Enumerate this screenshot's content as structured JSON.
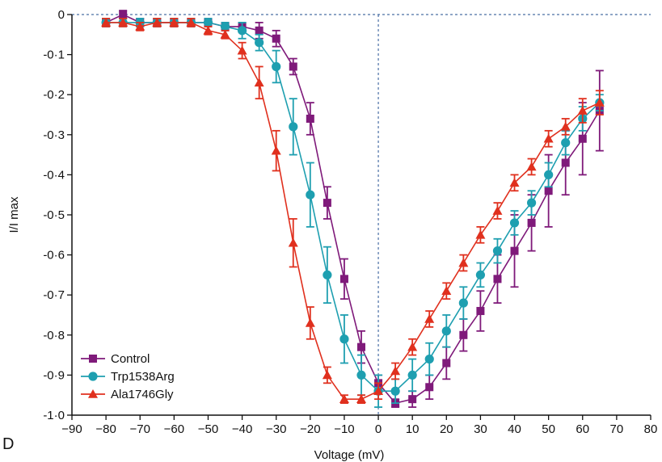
{
  "panel_label": "D",
  "chart_data": {
    "type": "line",
    "title": "",
    "xlabel": "Voltage (mV)",
    "ylabel": "I/I max",
    "xlim": [
      -90,
      80
    ],
    "ylim": [
      -1.0,
      0
    ],
    "x_ticks": [
      -90,
      -80,
      -70,
      -60,
      -50,
      -40,
      -30,
      -20,
      -10,
      0,
      10,
      20,
      30,
      40,
      50,
      60,
      70,
      80
    ],
    "x_tick_labels": [
      "−90",
      "−80",
      "−70",
      "−60",
      "−50",
      "−40",
      "−30",
      "−20",
      "−10",
      "0",
      "10",
      "20",
      "30",
      "40",
      "50",
      "60",
      "70",
      "80"
    ],
    "y_ticks": [
      0,
      -0.1,
      -0.2,
      -0.3,
      -0.4,
      -0.5,
      -0.6,
      -0.7,
      -0.8,
      -0.9,
      -1.0
    ],
    "y_tick_labels": [
      "0",
      "-0·1",
      "-0·2",
      "-0·3",
      "-0·4",
      "-0·5",
      "-0·6",
      "-0·7",
      "-0·8",
      "-0·9",
      "-1·0"
    ],
    "reference_lines": {
      "y": 0,
      "x": 0,
      "style": "dashed",
      "color": "#4a6fa5"
    },
    "grid": false,
    "legend_position": "bottom-left",
    "series": [
      {
        "name": "Control",
        "color": "#7f1a7a",
        "marker": "square",
        "x": [
          -80,
          -75,
          -70,
          -65,
          -60,
          -55,
          -50,
          -45,
          -40,
          -35,
          -30,
          -25,
          -20,
          -15,
          -10,
          -5,
          0,
          5,
          10,
          15,
          20,
          25,
          30,
          35,
          40,
          45,
          50,
          55,
          60,
          65
        ],
        "y": [
          -0.02,
          0.0,
          -0.02,
          -0.02,
          -0.02,
          -0.02,
          -0.02,
          -0.03,
          -0.03,
          -0.04,
          -0.06,
          -0.13,
          -0.26,
          -0.47,
          -0.66,
          -0.83,
          -0.92,
          -0.97,
          -0.96,
          -0.93,
          -0.87,
          -0.8,
          -0.74,
          -0.66,
          -0.59,
          -0.52,
          -0.44,
          -0.37,
          -0.31,
          -0.24
        ],
        "err": [
          0.01,
          0.01,
          0.01,
          0.01,
          0.01,
          0.01,
          0.01,
          0.01,
          0.01,
          0.02,
          0.02,
          0.02,
          0.04,
          0.04,
          0.05,
          0.04,
          0.02,
          0.01,
          0.02,
          0.03,
          0.04,
          0.04,
          0.05,
          0.06,
          0.09,
          0.07,
          0.09,
          0.08,
          0.09,
          0.1
        ]
      },
      {
        "name": "Trp1538Arg",
        "color": "#1e9fb0",
        "marker": "circle",
        "x": [
          -80,
          -75,
          -70,
          -65,
          -60,
          -55,
          -50,
          -45,
          -40,
          -35,
          -30,
          -25,
          -20,
          -15,
          -10,
          -5,
          0,
          5,
          10,
          15,
          20,
          25,
          30,
          35,
          40,
          45,
          50,
          55,
          60,
          65
        ],
        "y": [
          -0.02,
          -0.02,
          -0.02,
          -0.02,
          -0.02,
          -0.02,
          -0.02,
          -0.03,
          -0.04,
          -0.07,
          -0.13,
          -0.28,
          -0.45,
          -0.65,
          -0.81,
          -0.9,
          -0.94,
          -0.94,
          -0.9,
          -0.86,
          -0.79,
          -0.72,
          -0.65,
          -0.59,
          -0.52,
          -0.47,
          -0.4,
          -0.32,
          -0.26,
          -0.22
        ],
        "err": [
          0.01,
          0.01,
          0.01,
          0.01,
          0.01,
          0.01,
          0.01,
          0.01,
          0.02,
          0.02,
          0.04,
          0.07,
          0.08,
          0.07,
          0.06,
          0.05,
          0.04,
          0.03,
          0.04,
          0.04,
          0.04,
          0.04,
          0.03,
          0.03,
          0.03,
          0.03,
          0.03,
          0.03,
          0.03,
          0.02
        ]
      },
      {
        "name": "Ala1746Gly",
        "color": "#e0301e",
        "marker": "triangle",
        "x": [
          -80,
          -75,
          -70,
          -65,
          -60,
          -55,
          -50,
          -45,
          -40,
          -35,
          -30,
          -25,
          -20,
          -15,
          -10,
          -5,
          0,
          5,
          10,
          15,
          20,
          25,
          30,
          35,
          40,
          45,
          50,
          55,
          60,
          65
        ],
        "y": [
          -0.02,
          -0.02,
          -0.03,
          -0.02,
          -0.02,
          -0.02,
          -0.04,
          -0.05,
          -0.09,
          -0.17,
          -0.34,
          -0.57,
          -0.77,
          -0.9,
          -0.96,
          -0.96,
          -0.94,
          -0.89,
          -0.83,
          -0.76,
          -0.69,
          -0.62,
          -0.55,
          -0.49,
          -0.42,
          -0.38,
          -0.31,
          -0.28,
          -0.24,
          -0.22
        ],
        "err": [
          0.01,
          0.01,
          0.01,
          0.01,
          0.01,
          0.01,
          0.01,
          0.01,
          0.02,
          0.04,
          0.05,
          0.06,
          0.04,
          0.02,
          0.01,
          0.01,
          0.02,
          0.02,
          0.02,
          0.02,
          0.02,
          0.02,
          0.02,
          0.02,
          0.02,
          0.02,
          0.02,
          0.02,
          0.03,
          0.03
        ]
      }
    ]
  }
}
